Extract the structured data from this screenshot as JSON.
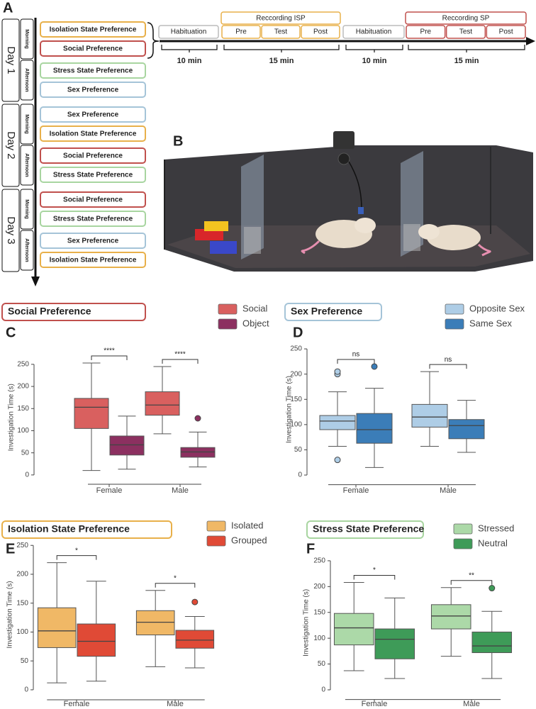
{
  "schedule": {
    "panel": "A",
    "days": [
      {
        "label": "Day 1",
        "slots": [
          {
            "label": "Morning",
            "tests": [
              {
                "name": "Isolation State  Preference",
                "color": "#e8b04a"
              },
              {
                "name": "Social Preference",
                "color": "#c0504d"
              }
            ]
          },
          {
            "label": "Afternoon",
            "tests": [
              {
                "name": "Stress State  Preference",
                "color": "#a8d5a0"
              },
              {
                "name": "Sex Preference",
                "color": "#a5c4d8"
              }
            ]
          }
        ]
      },
      {
        "label": "Day 2",
        "slots": [
          {
            "label": "Morning",
            "tests": [
              {
                "name": "Sex Preference",
                "color": "#a5c4d8"
              },
              {
                "name": "Isolation State  Preference",
                "color": "#e8b04a"
              }
            ]
          },
          {
            "label": "Afternoon",
            "tests": [
              {
                "name": "Social Preference",
                "color": "#c0504d"
              },
              {
                "name": "Stress State  Preference",
                "color": "#a8d5a0"
              }
            ]
          }
        ]
      },
      {
        "label": "Day 3",
        "slots": [
          {
            "label": "Morning",
            "tests": [
              {
                "name": "Social Preference",
                "color": "#c0504d"
              },
              {
                "name": "Stress State  Preference",
                "color": "#a8d5a0"
              }
            ]
          },
          {
            "label": "Afternoon",
            "tests": [
              {
                "name": "Sex Preference",
                "color": "#a5c4d8"
              },
              {
                "name": "Isolation State  Preference",
                "color": "#e8b04a"
              }
            ]
          }
        ]
      }
    ]
  },
  "timeline": {
    "steps": [
      {
        "label": "Habituation",
        "color": "#bbbbbb",
        "duration": "10 min"
      },
      {
        "label": "Reccording ISP",
        "color": "#e8b04a",
        "parts": [
          "Pre",
          "Test",
          "Post"
        ],
        "duration": "15 min"
      },
      {
        "label": "Habituation",
        "color": "#bbbbbb",
        "duration": "10 min"
      },
      {
        "label": "Reccording SP",
        "color": "#c0504d",
        "parts": [
          "Pre",
          "Test",
          "Post"
        ],
        "duration": "15 min"
      }
    ]
  },
  "arena": {
    "panel": "B"
  },
  "chart_data": [
    {
      "type": "box",
      "panel": "C",
      "title": "Social Preference",
      "title_color": "#c0504d",
      "ylabel": "Investigation Time (s)",
      "categories": [
        "Female",
        "Male"
      ],
      "ylim": [
        -5,
        265
      ],
      "yticks": [
        0,
        50,
        100,
        150,
        200,
        250
      ],
      "annotations": [
        "****",
        "****"
      ],
      "series": [
        {
          "name": "Social",
          "color": "#d9605f",
          "values": [
            {
              "min": 10,
              "q1": 105,
              "median": 153,
              "q3": 173,
              "max": 253,
              "outliers": []
            },
            {
              "min": 93,
              "q1": 135,
              "median": 158,
              "q3": 188,
              "max": 245,
              "outliers": []
            }
          ]
        },
        {
          "name": "Object",
          "color": "#8c3060",
          "values": [
            {
              "min": 13,
              "q1": 45,
              "median": 68,
              "q3": 88,
              "max": 133,
              "outliers": []
            },
            {
              "min": 18,
              "q1": 40,
              "median": 52,
              "q3": 62,
              "max": 97,
              "outliers": [
                128
              ]
            }
          ]
        }
      ]
    },
    {
      "type": "box",
      "panel": "D",
      "title": "Sex Preference",
      "title_color": "#a5c4d8",
      "ylabel": "Investigation Time (s)",
      "categories": [
        "Female",
        "Male"
      ],
      "ylim": [
        -5,
        265
      ],
      "yticks": [
        0,
        50,
        100,
        150,
        200,
        250
      ],
      "annotations": [
        "ns",
        "ns"
      ],
      "series": [
        {
          "name": "Opposite Sex",
          "color": "#aecde6",
          "values": [
            {
              "min": 57,
              "q1": 90,
              "median": 107,
              "q3": 118,
              "max": 165,
              "outliers": [
                30,
                200,
                205
              ]
            },
            {
              "min": 57,
              "q1": 95,
              "median": 115,
              "q3": 140,
              "max": 205,
              "outliers": []
            }
          ]
        },
        {
          "name": "Same Sex",
          "color": "#3b7db8",
          "values": [
            {
              "min": 15,
              "q1": 63,
              "median": 90,
              "q3": 122,
              "max": 172,
              "outliers": [
                215
              ]
            },
            {
              "min": 45,
              "q1": 72,
              "median": 98,
              "q3": 110,
              "max": 148,
              "outliers": []
            }
          ]
        }
      ]
    },
    {
      "type": "box",
      "panel": "E",
      "title": "Isolation State  Preference",
      "title_color": "#e8b04a",
      "ylabel": "Investigation Time (s)",
      "categories": [
        "Female",
        "Male"
      ],
      "ylim": [
        -5,
        265
      ],
      "yticks": [
        0,
        50,
        100,
        150,
        200,
        250
      ],
      "annotations": [
        "*",
        "*"
      ],
      "series": [
        {
          "name": "Isolated",
          "color": "#f0b866",
          "values": [
            {
              "min": 12,
              "q1": 73,
              "median": 102,
              "q3": 142,
              "max": 220,
              "outliers": []
            },
            {
              "min": 40,
              "q1": 95,
              "median": 117,
              "q3": 137,
              "max": 172,
              "outliers": []
            }
          ]
        },
        {
          "name": "Grouped",
          "color": "#e04a36",
          "values": [
            {
              "min": 15,
              "q1": 58,
              "median": 84,
              "q3": 114,
              "max": 188,
              "outliers": []
            },
            {
              "min": 38,
              "q1": 72,
              "median": 86,
              "q3": 103,
              "max": 127,
              "outliers": [
                152
              ]
            }
          ]
        }
      ]
    },
    {
      "type": "box",
      "panel": "F",
      "title": "Stress State  Preference",
      "title_color": "#a8d5a0",
      "ylabel": "Investigation Time (s)",
      "categories": [
        "Female",
        "Male"
      ],
      "ylim": [
        -5,
        265
      ],
      "yticks": [
        0,
        50,
        100,
        150,
        200,
        250
      ],
      "annotations": [
        "*",
        "**"
      ],
      "series": [
        {
          "name": "Stressed",
          "color": "#acd9a8",
          "values": [
            {
              "min": 37,
              "q1": 87,
              "median": 120,
              "q3": 148,
              "max": 208,
              "outliers": []
            },
            {
              "min": 65,
              "q1": 118,
              "median": 143,
              "q3": 165,
              "max": 198,
              "outliers": []
            }
          ]
        },
        {
          "name": "Neutral",
          "color": "#3e9b58",
          "values": [
            {
              "min": 22,
              "q1": 60,
              "median": 98,
              "q3": 118,
              "max": 178,
              "outliers": []
            },
            {
              "min": 22,
              "q1": 72,
              "median": 85,
              "q3": 112,
              "max": 152,
              "outliers": [
                197
              ]
            }
          ]
        }
      ]
    }
  ]
}
